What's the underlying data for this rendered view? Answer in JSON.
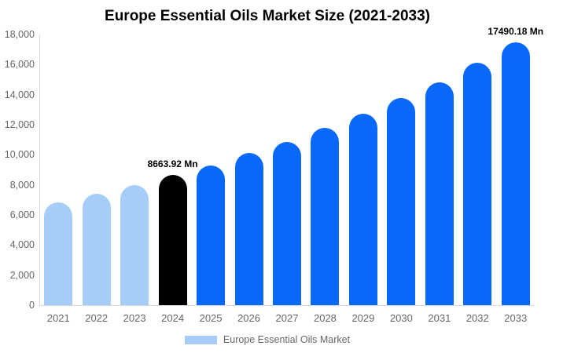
{
  "chart_data": {
    "type": "bar",
    "title": "Europe Essential Oils Market Size (2021-2033)",
    "series_name": "Europe Essential Oils Market",
    "categories": [
      "2021",
      "2022",
      "2023",
      "2024",
      "2025",
      "2026",
      "2027",
      "2028",
      "2029",
      "2030",
      "2031",
      "2032",
      "2033"
    ],
    "values": [
      6840,
      7410,
      7990,
      8663.92,
      9300,
      10120,
      10860,
      11790,
      12740,
      13780,
      14830,
      16120,
      17490.18
    ],
    "values_note": "only 2024 and 2033 carry printed labels; other values estimated from axis gridlines",
    "value_labels": [
      {
        "category": "2024",
        "text": "8663.92 Mn"
      },
      {
        "category": "2033",
        "text": "17490.18 Mn"
      }
    ],
    "ylim": [
      0,
      18000
    ],
    "ytick_step": 2000,
    "ytick_labels": [
      "0",
      "2,000",
      "4,000",
      "6,000",
      "8,000",
      "10,000",
      "12,000",
      "14,000",
      "16,000",
      "18,000"
    ],
    "xlabel": "",
    "ylabel": "",
    "grid": false,
    "legend_position": "bottom-center",
    "bar_roles": [
      "historical",
      "historical",
      "historical",
      "highlight",
      "forecast",
      "forecast",
      "forecast",
      "forecast",
      "forecast",
      "forecast",
      "forecast",
      "forecast",
      "forecast"
    ],
    "colors": {
      "historical": "#A5CDF8",
      "highlight": "#000000",
      "forecast": "#0768FA",
      "axis_line": "#d9d9d9",
      "tick_text": "#666666",
      "value_label_text": "#000000"
    }
  },
  "legend": {
    "items": [
      {
        "label": "Europe Essential Oils Market",
        "color": "#A5CDF8"
      }
    ]
  }
}
